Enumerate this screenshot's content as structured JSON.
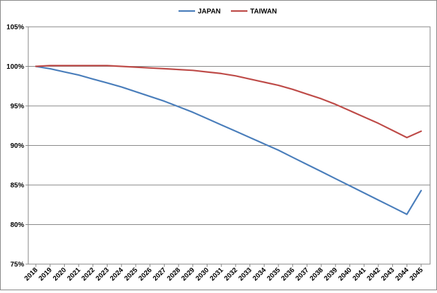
{
  "chart_data": {
    "type": "line",
    "title": "",
    "xlabel": "",
    "ylabel": "",
    "x": [
      2018,
      2019,
      2020,
      2021,
      2022,
      2023,
      2024,
      2025,
      2026,
      2027,
      2028,
      2029,
      2030,
      2031,
      2032,
      2033,
      2034,
      2035,
      2036,
      2037,
      2038,
      2039,
      2040,
      2041,
      2042,
      2043,
      2044,
      2045
    ],
    "x_tick_labels": [
      "2018",
      "2019",
      "2020",
      "2021",
      "2022",
      "2023",
      "2024",
      "2025",
      "2026",
      "2027",
      "2028",
      "2029",
      "2030",
      "2031",
      "2032",
      "2033",
      "2034",
      "2035",
      "2036",
      "2037",
      "2038",
      "2039",
      "2040",
      "2041",
      "2042",
      "2043",
      "2044",
      "2045"
    ],
    "y_tick_labels": [
      "75%",
      "80%",
      "85%",
      "90%",
      "95%",
      "100%",
      "105%"
    ],
    "y_ticks": [
      75,
      80,
      85,
      90,
      95,
      100,
      105
    ],
    "ylim": [
      75,
      105
    ],
    "grid": true,
    "legend_position": "top",
    "series": [
      {
        "name": "JAPAN",
        "color": "#4a7ebb",
        "values": [
          100.0,
          99.7,
          99.3,
          98.9,
          98.4,
          97.9,
          97.4,
          96.8,
          96.2,
          95.6,
          94.9,
          94.2,
          93.4,
          92.6,
          91.8,
          91.0,
          90.2,
          89.4,
          88.5,
          87.6,
          86.7,
          85.8,
          84.9,
          84.0,
          83.1,
          82.2,
          81.3,
          84.3
        ]
      },
      {
        "name": "TAIWAN",
        "color": "#be4b48",
        "values": [
          100.0,
          100.1,
          100.1,
          100.1,
          100.1,
          100.1,
          100.0,
          99.9,
          99.8,
          99.7,
          99.6,
          99.5,
          99.3,
          99.1,
          98.8,
          98.4,
          98.0,
          97.6,
          97.1,
          96.5,
          95.9,
          95.2,
          94.4,
          93.6,
          92.8,
          91.9,
          91.0,
          91.8
        ]
      }
    ]
  }
}
